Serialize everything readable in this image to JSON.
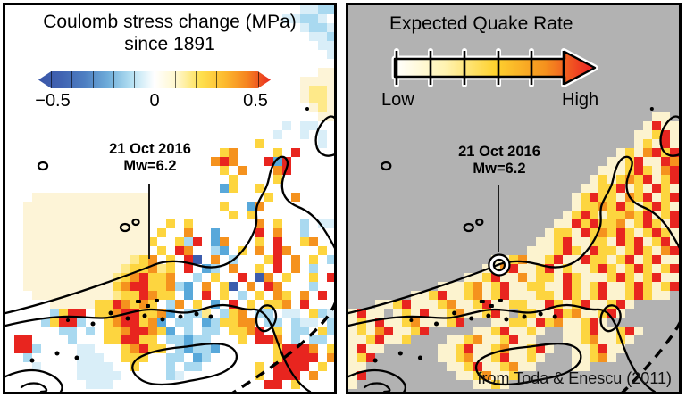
{
  "colors": {
    "sea_gray": "#b2b2b2",
    "coastline": "#000000",
    "panel_border": "#000000",
    "leader_line": "#1c1c1c"
  },
  "left_panel": {
    "title_line1": "Coulomb stress change (MPa)",
    "title_line2": "since 1891",
    "colorbar": {
      "min_label": "−0.5",
      "mid_label": "0",
      "max_label": "0.5",
      "gradient": [
        "#3a56a8",
        "#4063b2",
        "#4e7fc2",
        "#6fadda",
        "#b4e0f2",
        "#ffffff",
        "#fff6c8",
        "#fee04e",
        "#fdbb2f",
        "#f5831f",
        "#e92a21"
      ]
    },
    "annotation": {
      "date": "21 Oct 2016",
      "magnitude": "Mw=6.2"
    },
    "grid": {
      "cell": 10,
      "cols": 37,
      "palette": {
        "p": "#fdf4d7",
        "Y": "#fee989",
        "y": "#fdd53f",
        "o": "#f5921e",
        "r": "#e8251f",
        "P": "#d9eef8",
        "c": "#a9d9f0",
        "b": "#58a8da",
        "B": "#3c5cad"
      },
      "rows": [
        "..............................‥..PPcc.",
        "...............................PPccP.",
        "..............................‥..PccP.",
        ".............................. ...PPc.",
        ".............................. ....PP.",
        ".............................. .....P.",
        "",
        ".............................. ....pp.",
        "..............................‥..pppp.",
        "..............................‥..pYYp.",
        "..............................‥..pYYp.",
        ".............................. ...pYp.",
        ".............................. ....pp.",
        "...............................P.PP..",
        "..............................P..P.P.",
        "............................y......P.",
        "........................yo....y.r",
        ".......................oro...rbr.",
        "........................y.o...or.",
        ".........................y....y..",
        "........................by..y....",
        "...ppppppppppppp.............y..o..",
        "..pppppppppppppp........y..bo....",
        "..pppppppppppppp.........y.y.....",
        "..pppppppppppppp..y.y.......o.y..c.PP",
        "..pppppppppppppp.y..o..b....r.o..c...",
        "..ppppppppppppppy..ycr.bo...y.r..yo..",
        "..pppppppppppppp.y.ro..cb.y.o.ro...y.",
        "..ppppppppppppYyo.y.rB.o.c...yr.o.y.c",
        "..pppppppppppYyyoYy.r.bc.o..y.r.o.c..",
        "..ppppppppppYyoryyo..c.y..r.Bo.y..y.r",
        "..ppppppppppyorryyocb.o.yB.o.ro...c..",
        "...pppppppppYyyroyy.b.r.y.c.y.oy.o.r.",
        ".....pppppyyroyoy.co.y.b.r.y.yyo.r...",
        ".....cyrr.yyorryyob.ccY.cyo.cc.PP.ycP",
        "....cyrrc..yorryob.cc.bcyyoo.cc.cPP.c",
        "......cc.c.yyorroyb.c.cc.yyor.y.cc.yc",
        ".rr....c...yyrryy.ccbcc...y.rro.c.cc.",
        ".rrc....PP...yoryy.cbccb......yrrro.y",
        "..c.....PPP..yyy..cc.bc.......yrrrr.o",
        "...P....PPPP..y...c.cc......y.rrrr.y.",
        "........PPPPP.....cP........y.rrr.o..",
        ".........PPP...............‥.rr.y...",
        ""
      ]
    }
  },
  "right_panel": {
    "title": "Expected Quake Rate",
    "scale": {
      "low_label": "Low",
      "high_label": "High",
      "gradient": [
        "#ffffff",
        "#fff3b2",
        "#fed22f",
        "#f5921e",
        "#ec1c24"
      ]
    },
    "annotation": {
      "date": "21 Oct 2016",
      "magnitude": "Mw=6.2"
    },
    "attribution": "from Toda & Enescu (2011)",
    "grid": {
      "cell": 10,
      "cols": 37,
      "palette": {
        "w": "#fcf3cf",
        "W": "#fffef2",
        "y": "#fdd53f",
        "o": "#f5921e",
        "r": "#e8251f"
      },
      "rows": [
        "",
        "",
        "",
        "",
        "",
        "",
        "",
        "",
        "",
        "",
        "",
        "",
        "..................................ww.",
        ".................................wrww",
        "................................wwyrw",
        "................................wywrww",
        "..............................wyworyr",
        ".............................wwyrwwro",
        "............................wwwyrywor",
        "...........................wywyoyrwyr",
        "..........................wwyyrwywryw",
        ".........................wyryywoyrwyr",
        ".........................wyyoyrywyryw",
        "........................wyrywyyoyrwyr",
        ".......................wwryryyowyrywr",
        "......................wyywryoyrywyryw",
        ".....................wwyrwwyywryrwyrw",
        "....................wwwyrywryywyrywor",
        "................wwyowwyrwwryywyrwyrww",
        "...............wworwwyrwywwyrywyrywyr",
        ".............wwyrwwowyywrywwwyrywyrww",
        "..........wwwyowyrwwyywwrywyrwwyrywyr",
        ".......wwyrwwyowyrwwwyywrywyrwwyryww.",
        "...wwyrwwwyowwyrwwyywwrywyrwwyrw.....",
        "wrww.wywrwwyowwyrw.yywwryowwyrw......",
        "wywrwwyowwwyr...wwyywryowwyrw........",
        "wyworwwyr.....wwyrwwyw..wwyrwwyrw....",
        "wwyrwwy....wwyowwyrww...wwyowwyw.....",
        "wrww......wwyrwwyowwyrw..wwyrww......",
        "wyr.......wwyowwyrwwyw...wwyow.......",
        "ww.........wwyrwwyoww....ww..........",
        "wr..........wwyowwy..................",
        "w.............wwyw...................",
        ""
      ]
    }
  }
}
